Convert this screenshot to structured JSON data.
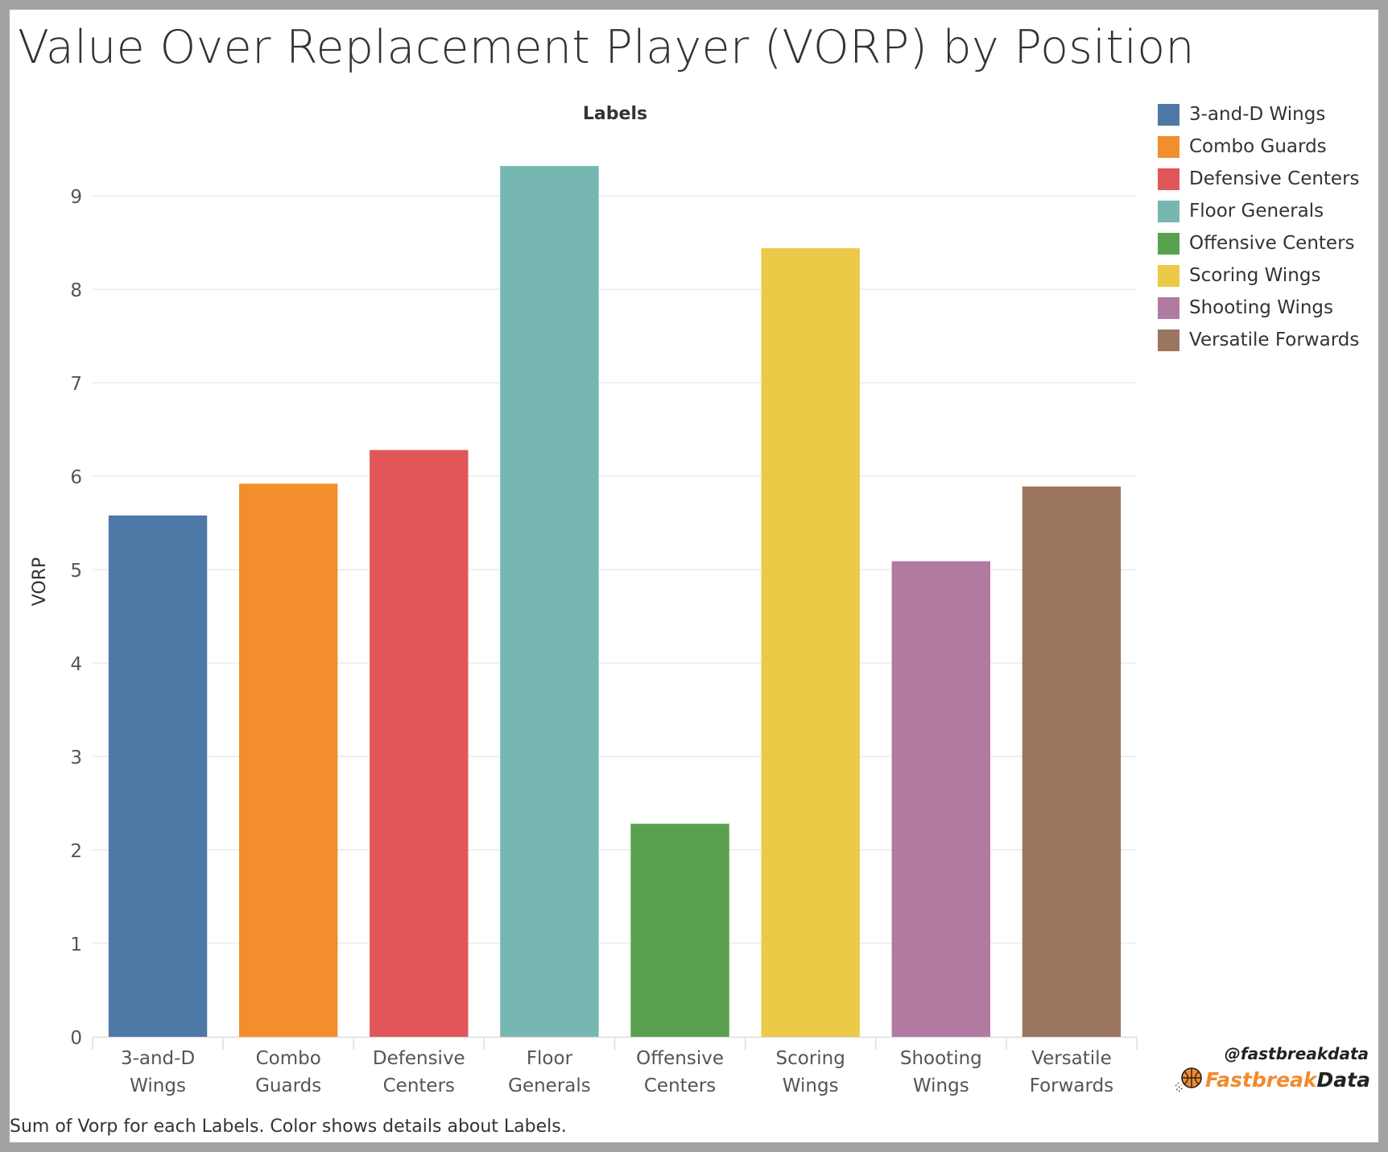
{
  "title": "Value Over Replacement Player (VORP) by Position",
  "footer": "Sum of Vorp for each Labels.  Color shows details about Labels.",
  "brand": {
    "handle": "@fastbreakdata",
    "name_part1": "Fastbreak",
    "name_part2": "Data",
    "icon": "basketball-icon"
  },
  "chart_data": {
    "type": "bar",
    "title": "Value Over Replacement Player (VORP) by Position",
    "column_header": "Labels",
    "xlabel": "",
    "ylabel": "VORP",
    "ylim": [
      0,
      9.7
    ],
    "yticks": [
      0,
      1,
      2,
      3,
      4,
      5,
      6,
      7,
      8,
      9
    ],
    "grid": true,
    "legend_position": "right",
    "categories": [
      "3-and-D Wings",
      "Combo Guards",
      "Defensive Centers",
      "Floor Generals",
      "Offensive Centers",
      "Scoring Wings",
      "Shooting Wings",
      "Versatile Forwards"
    ],
    "category_label_lines": [
      [
        "3-and-D",
        "Wings"
      ],
      [
        "Combo",
        "Guards"
      ],
      [
        "Defensive",
        "Centers"
      ],
      [
        "Floor",
        "Generals"
      ],
      [
        "Offensive",
        "Centers"
      ],
      [
        "Scoring",
        "Wings"
      ],
      [
        "Shooting",
        "Wings"
      ],
      [
        "Versatile",
        "Forwards"
      ]
    ],
    "values": [
      5.58,
      5.92,
      6.28,
      9.32,
      2.28,
      8.44,
      5.09,
      5.89
    ],
    "colors": [
      "#4e79a7",
      "#f28e2b",
      "#e15759",
      "#76b7b2",
      "#59a14f",
      "#edc948",
      "#b07aa1",
      "#9c755f"
    ]
  }
}
